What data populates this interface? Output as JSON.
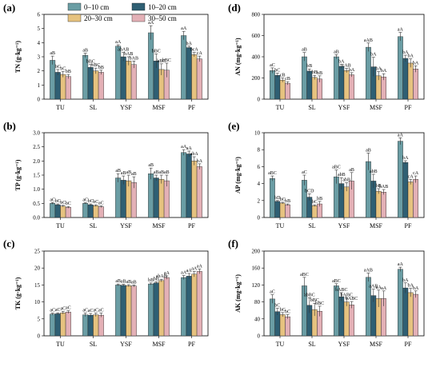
{
  "legend": [
    {
      "name": "0–10 cm",
      "color": "#6a9da4"
    },
    {
      "name": "10–20 cm",
      "color": "#2f5f73"
    },
    {
      "name": "20–30 cm",
      "color": "#e6c27f"
    },
    {
      "name": "30–50 cm",
      "color": "#e3b0b6"
    }
  ],
  "chart_data": [
    {
      "type": "bar",
      "panel": "(a)",
      "ylabel": "TN (g·kg⁻¹)",
      "ylim": [
        0,
        6
      ],
      "yticks": [
        0,
        1,
        2,
        3,
        4,
        5,
        6
      ],
      "categories": [
        "TU",
        "SL",
        "YSF",
        "MSF",
        "PF"
      ],
      "values": [
        [
          2.75,
          1.9,
          1.75,
          1.6
        ],
        [
          3.1,
          2.25,
          2.0,
          1.9
        ],
        [
          3.75,
          3.0,
          2.7,
          2.45
        ],
        [
          4.7,
          2.7,
          2.1,
          2.05
        ],
        [
          4.5,
          3.65,
          3.15,
          2.85
        ]
      ],
      "errors": [
        [
          0.3,
          0.2,
          0.2,
          0.15
        ],
        [
          0.15,
          0.2,
          0.2,
          0.15
        ],
        [
          0.1,
          0.3,
          0.3,
          0.25
        ],
        [
          0.5,
          0.5,
          0.4,
          0.5
        ],
        [
          0.3,
          0.1,
          0.15,
          0.2
        ]
      ],
      "labels": [
        [
          "aB",
          "bC",
          "bC",
          "bB"
        ],
        [
          "aB",
          "bBC",
          "bBC",
          "bB"
        ],
        [
          "aA",
          "abAB",
          "bAB",
          "bAB"
        ],
        [
          "aA",
          "bBC",
          "bBC",
          "bBC"
        ],
        [
          "aA",
          "bA",
          "bcA",
          "cA"
        ]
      ]
    },
    {
      "type": "bar",
      "panel": "(b)",
      "ylabel": "TP (g·kg⁻¹)",
      "ylim": [
        0,
        3.0
      ],
      "yticks": [
        0,
        0.5,
        1.0,
        1.5,
        2.0,
        2.5,
        3.0
      ],
      "categories": [
        "TU",
        "SL",
        "YSF",
        "MSF",
        "PF"
      ],
      "values": [
        [
          0.5,
          0.45,
          0.4,
          0.36
        ],
        [
          0.5,
          0.45,
          0.42,
          0.38
        ],
        [
          1.4,
          1.32,
          1.3,
          1.24
        ],
        [
          1.55,
          1.4,
          1.35,
          1.3
        ],
        [
          2.3,
          2.25,
          2.0,
          1.8
        ]
      ],
      "errors": [
        [
          0.03,
          0.03,
          0.03,
          0.03
        ],
        [
          0.02,
          0.03,
          0.03,
          0.03
        ],
        [
          0.15,
          0.15,
          0.2,
          0.2
        ],
        [
          0.2,
          0.1,
          0.15,
          0.2
        ],
        [
          0.1,
          0.1,
          0.15,
          0.1
        ]
      ],
      "labels": [
        [
          "aC",
          "bC",
          "bC",
          "bC"
        ],
        [
          "aC",
          "bC",
          "bC",
          "aC"
        ],
        [
          "aB",
          "aB",
          "aB",
          "aB"
        ],
        [
          "aB",
          "aB",
          "aB",
          "aB"
        ],
        [
          "aA",
          "aA",
          "abA",
          "bA"
        ]
      ]
    },
    {
      "type": "bar",
      "panel": "(c)",
      "ylabel": "TK (g·kg⁻¹)",
      "ylim": [
        0,
        25
      ],
      "yticks": [
        0,
        5,
        10,
        15,
        20,
        25
      ],
      "categories": [
        "TU",
        "SL",
        "YSF",
        "MSF",
        "PF"
      ],
      "values": [
        [
          6.4,
          6.5,
          6.8,
          7.0
        ],
        [
          6.2,
          6.1,
          6.2,
          6.1
        ],
        [
          15.0,
          14.9,
          14.8,
          14.7
        ],
        [
          15.3,
          15.6,
          16.3,
          17.2
        ],
        [
          17.2,
          17.6,
          18.2,
          19.0
        ]
      ],
      "errors": [
        [
          0.3,
          0.3,
          0.4,
          0.4
        ],
        [
          0.5,
          0.5,
          0.5,
          0.6
        ],
        [
          0.3,
          0.3,
          0.3,
          0.3
        ],
        [
          0.3,
          0.3,
          0.4,
          0.5
        ],
        [
          0.6,
          0.8,
          0.8,
          0.7
        ]
      ],
      "labels": [
        [
          "aC",
          "aC",
          "aC",
          "aC"
        ],
        [
          "aC",
          "aC",
          "aC",
          "aC"
        ],
        [
          "aB",
          "aB",
          "aB",
          "aB"
        ],
        [
          "bB",
          "bB",
          "abAB",
          "aA"
        ],
        [
          "aA",
          "aA",
          "aA",
          "aA"
        ]
      ]
    },
    {
      "type": "bar",
      "panel": "(d)",
      "ylabel": "AN (mg·kg⁻¹)",
      "ylim": [
        0,
        800
      ],
      "yticks": [
        0,
        200,
        400,
        600,
        800
      ],
      "categories": [
        "TU",
        "SL",
        "YSF",
        "MSF",
        "PF"
      ],
      "values": [
        [
          270,
          225,
          180,
          150
        ],
        [
          400,
          265,
          205,
          190
        ],
        [
          400,
          310,
          270,
          230
        ],
        [
          490,
          305,
          220,
          210
        ],
        [
          590,
          385,
          340,
          285
        ]
      ],
      "errors": [
        [
          25,
          20,
          20,
          15
        ],
        [
          40,
          20,
          20,
          30
        ],
        [
          20,
          20,
          20,
          20
        ],
        [
          40,
          90,
          40,
          30
        ],
        [
          40,
          30,
          40,
          30
        ]
      ],
      "labels": [
        [
          "aC",
          "bC",
          "cB",
          "cB"
        ],
        [
          "aB",
          "bB",
          "bB",
          "bB"
        ],
        [
          "aB",
          "bA",
          "cAB",
          "bA"
        ],
        [
          "aAB",
          "bA",
          "bA",
          "bA"
        ],
        [
          "aA",
          "bA",
          "bA",
          "bA"
        ]
      ]
    },
    {
      "type": "bar",
      "panel": "(e)",
      "ylabel": "AP (mg·kg⁻¹)",
      "ylim": [
        0,
        10
      ],
      "yticks": [
        0,
        2,
        4,
        6,
        8,
        10
      ],
      "categories": [
        "TU",
        "SL",
        "YSF",
        "MSF",
        "PF"
      ],
      "values": [
        [
          4.6,
          1.9,
          1.7,
          1.5
        ],
        [
          4.4,
          2.4,
          1.4,
          1.6
        ],
        [
          4.8,
          4.0,
          3.6,
          4.3
        ],
        [
          6.6,
          4.3,
          3.1,
          3.0
        ],
        [
          9.0,
          6.5,
          4.2,
          4.5
        ]
      ],
      "errors": [
        [
          0.3,
          0.1,
          0.1,
          0.1
        ],
        [
          0.6,
          0.4,
          0.1,
          0.3
        ],
        [
          0.8,
          0.7,
          0.5,
          1.0
        ],
        [
          1.0,
          0.8,
          0.3,
          0.3
        ],
        [
          0.4,
          0.2,
          0.3,
          0.4
        ]
      ],
      "labels": [
        [
          "aBC",
          "bD",
          "bC",
          "bB"
        ],
        [
          "aC",
          "bCD",
          "bC",
          "bB"
        ],
        [
          "aBC",
          "abB",
          "abB",
          "aB"
        ],
        [
          "aB",
          "abB",
          "bB",
          "bAB"
        ],
        [
          "aA",
          "bA",
          "cA",
          "cA"
        ]
      ]
    },
    {
      "type": "bar",
      "panel": "(f)",
      "ylabel": "AK (mg·kg⁻¹)",
      "ylim": [
        0,
        200
      ],
      "yticks": [
        0,
        40,
        80,
        120,
        160,
        200
      ],
      "categories": [
        "TU",
        "SL",
        "YSF",
        "MSF",
        "PF"
      ],
      "values": [
        [
          87,
          57,
          50,
          45
        ],
        [
          118,
          72,
          62,
          58
        ],
        [
          118,
          92,
          80,
          73
        ],
        [
          138,
          95,
          88,
          88
        ],
        [
          157,
          113,
          102,
          98
        ]
      ],
      "errors": [
        [
          10,
          8,
          5,
          5
        ],
        [
          20,
          18,
          15,
          12
        ],
        [
          5,
          10,
          10,
          8
        ],
        [
          10,
          15,
          20,
          18
        ],
        [
          5,
          12,
          10,
          8
        ]
      ],
      "labels": [
        [
          "aC",
          "bC",
          "bC",
          "bC"
        ],
        [
          "aBC",
          "abBC",
          "bBC",
          "bBC"
        ],
        [
          "aBC",
          "bABC",
          "bABC",
          "bABC"
        ],
        [
          "aAB",
          "aAB",
          "aA",
          "aA"
        ],
        [
          "aA",
          "bA",
          "bA",
          "bA"
        ]
      ]
    }
  ]
}
